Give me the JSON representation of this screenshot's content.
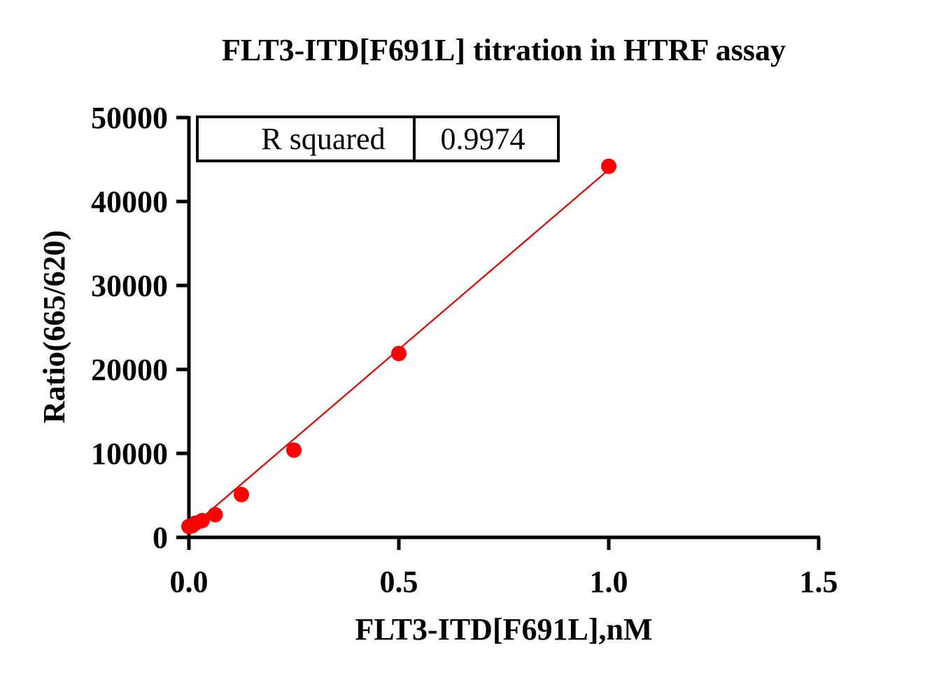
{
  "chart_data": {
    "type": "scatter",
    "title": "FLT3-ITD[F691L] titration in HTRF assay",
    "xlabel": "FLT3-ITD[F691L],nM",
    "ylabel": "Ratio(665/620)",
    "xlim": [
      0,
      1.5
    ],
    "ylim": [
      0,
      50000
    ],
    "x_ticks": [
      0,
      0.5,
      1.0,
      1.5
    ],
    "x_tick_labels": [
      "0.0",
      "0.5",
      "1.0",
      "1.5"
    ],
    "y_ticks": [
      0,
      10000,
      20000,
      30000,
      40000,
      50000
    ],
    "y_tick_labels": [
      "0",
      "10000",
      "20000",
      "30000",
      "40000",
      "50000"
    ],
    "series": [
      {
        "color": "#ff0000",
        "x": [
          0,
          0.0078,
          0.0156,
          0.03125,
          0.0625,
          0.125,
          0.25,
          0.5,
          1.0
        ],
        "y": [
          1300,
          1400,
          1700,
          2000,
          2700,
          5100,
          10400,
          21900,
          44200
        ]
      }
    ],
    "fit_line": {
      "type": "linear",
      "color": "#e60000",
      "x": [
        0,
        1.0
      ],
      "y": [
        1000,
        43800
      ]
    },
    "grid": false,
    "stats_table": {
      "label": "R squared",
      "value": "0.9974"
    }
  }
}
